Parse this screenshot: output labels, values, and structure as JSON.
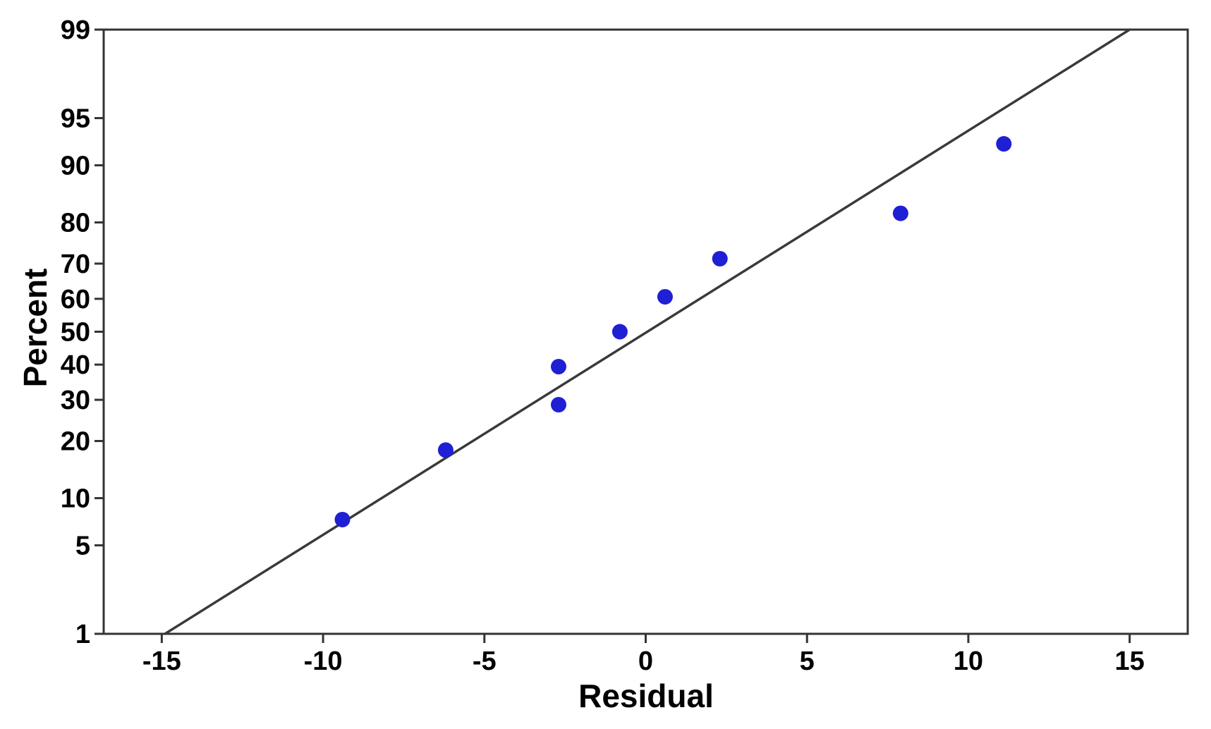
{
  "chart_data": {
    "type": "scatter",
    "subtype": "normal-probability-plot",
    "title": "",
    "xlabel": "Residual",
    "ylabel": "Percent",
    "x_ticks": [
      -15,
      -10,
      -5,
      0,
      5,
      10,
      15
    ],
    "y_ticks": [
      1,
      5,
      10,
      20,
      30,
      40,
      50,
      60,
      70,
      80,
      90,
      95,
      99
    ],
    "xlim": [
      -16.8,
      16.8
    ],
    "ylim_percent": [
      1,
      99
    ],
    "y_scale": "probit",
    "grid": "off",
    "legend": "none",
    "points": [
      {
        "residual": -9.4,
        "percent": 7.4
      },
      {
        "residual": -6.2,
        "percent": 18.1
      },
      {
        "residual": -2.7,
        "percent": 28.7
      },
      {
        "residual": -2.7,
        "percent": 39.4
      },
      {
        "residual": -0.8,
        "percent": 50.0
      },
      {
        "residual": 0.6,
        "percent": 60.6
      },
      {
        "residual": 2.3,
        "percent": 71.3
      },
      {
        "residual": 7.9,
        "percent": 81.9
      },
      {
        "residual": 11.1,
        "percent": 92.6
      }
    ],
    "fit_line": {
      "x1": -14.9,
      "p1": 1,
      "x2": 15.0,
      "p2": 99
    },
    "colors": {
      "point": "#1f1fd4",
      "fit_line": "#3a3a3a",
      "frame": "#333333",
      "text": "#000000",
      "background": "#ffffff"
    }
  }
}
